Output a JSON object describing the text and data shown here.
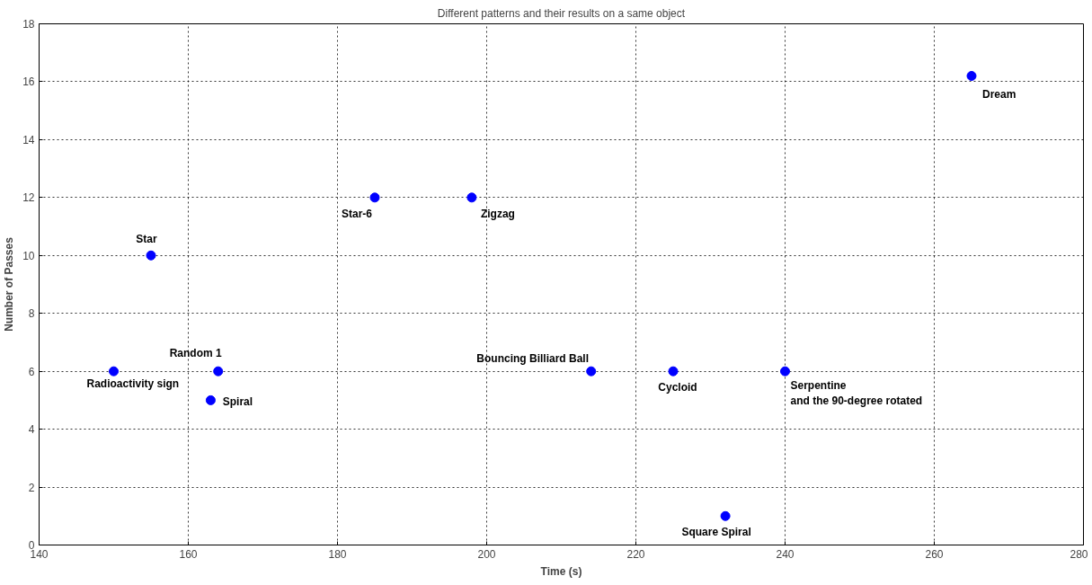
{
  "chart_data": {
    "type": "scatter",
    "title": "Different patterns and their results on a same object",
    "xlabel": "Time (s)",
    "ylabel": "Number of Passes",
    "x": [
      265,
      185,
      198,
      155,
      150,
      164,
      163,
      214,
      225,
      240,
      232
    ],
    "series": [
      {
        "color": "#0000ff",
        "values": [
          16.2,
          12,
          12,
          10,
          6,
          6,
          5,
          6,
          6,
          6,
          1
        ]
      }
    ],
    "marker": "circle",
    "xlim": [
      140,
      280
    ],
    "ylim": [
      0,
      18
    ],
    "xticks": [
      140,
      160,
      180,
      200,
      220,
      240,
      260,
      280
    ],
    "yticks": [
      0,
      2,
      4,
      6,
      8,
      10,
      12,
      14,
      16,
      18
    ],
    "grid": true,
    "annotations": [
      {
        "text": "Dream",
        "x": 265,
        "y": 16.2
      },
      {
        "text": "Star-6",
        "x": 185,
        "y": 12
      },
      {
        "text": "Zigzag",
        "x": 198,
        "y": 12
      },
      {
        "text": "Star",
        "x": 155,
        "y": 10
      },
      {
        "text": "Radioactivity sign",
        "x": 150,
        "y": 6
      },
      {
        "text": "Random 1",
        "x": 164,
        "y": 6
      },
      {
        "text": "Spiral",
        "x": 163,
        "y": 5
      },
      {
        "text": "Bouncing Billiard Ball",
        "x": 214,
        "y": 6
      },
      {
        "text": "Cycloid",
        "x": 225,
        "y": 6
      },
      {
        "text": "Serpentine\nand the 90-degree rotated",
        "x": 240,
        "y": 6
      },
      {
        "text": "Square Spiral",
        "x": 232,
        "y": 1
      }
    ]
  }
}
